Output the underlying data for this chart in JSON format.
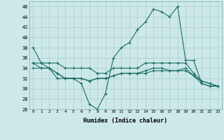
{
  "xlabel": "Humidex (Indice chaleur)",
  "background_color": "#cce8e8",
  "grid_color": "#aacece",
  "line_color": "#1a6e64",
  "xlim": [
    -0.5,
    23.5
  ],
  "ylim": [
    26,
    47
  ],
  "xticks": [
    0,
    1,
    2,
    3,
    4,
    5,
    6,
    7,
    8,
    9,
    10,
    11,
    12,
    13,
    14,
    15,
    16,
    17,
    18,
    19,
    20,
    21,
    22,
    23
  ],
  "yticks": [
    26,
    28,
    30,
    32,
    34,
    36,
    38,
    40,
    42,
    44,
    46
  ],
  "line1_x": [
    0,
    1,
    2,
    3,
    4,
    5,
    6,
    7,
    8,
    9,
    10,
    11,
    12,
    13,
    14,
    15,
    16,
    17,
    18,
    19,
    20,
    21,
    22,
    23
  ],
  "line1_y": [
    38,
    35,
    34,
    32,
    32,
    32,
    31,
    27,
    26,
    29,
    36,
    38,
    39,
    41.5,
    43,
    45.5,
    45,
    44,
    46,
    35.5,
    35.5,
    31,
    30.5,
    30.5
  ],
  "line2_x": [
    0,
    1,
    2,
    3,
    4,
    5,
    6,
    7,
    8,
    9,
    10,
    11,
    12,
    13,
    14,
    15,
    16,
    17,
    18,
    19,
    20,
    21,
    22,
    23
  ],
  "line2_y": [
    35,
    35,
    35,
    35,
    34,
    34,
    34,
    34,
    33,
    33,
    34,
    34,
    34,
    34,
    35,
    35,
    35,
    35,
    35,
    35,
    33,
    31.5,
    31,
    30.5
  ],
  "line3_x": [
    0,
    1,
    2,
    3,
    4,
    5,
    6,
    7,
    8,
    9,
    10,
    11,
    12,
    13,
    14,
    15,
    16,
    17,
    18,
    19,
    20,
    21,
    22,
    23
  ],
  "line3_y": [
    34,
    34,
    34,
    33,
    32,
    32,
    32,
    31.5,
    32,
    32,
    32.5,
    33,
    33,
    33,
    33,
    33.5,
    33.5,
    33.5,
    33.5,
    33.5,
    32.5,
    31,
    30.5,
    30.5
  ],
  "line4_x": [
    0,
    1,
    2,
    3,
    4,
    5,
    6,
    7,
    8,
    9,
    10,
    11,
    12,
    13,
    14,
    15,
    16,
    17,
    18,
    19,
    20,
    21,
    22,
    23
  ],
  "line4_y": [
    35,
    34,
    34,
    33,
    32,
    32,
    32,
    31.5,
    32,
    32,
    32.5,
    33,
    33,
    33,
    33.5,
    34,
    34,
    33.5,
    33.5,
    34,
    32.5,
    31.5,
    31,
    30.5
  ]
}
